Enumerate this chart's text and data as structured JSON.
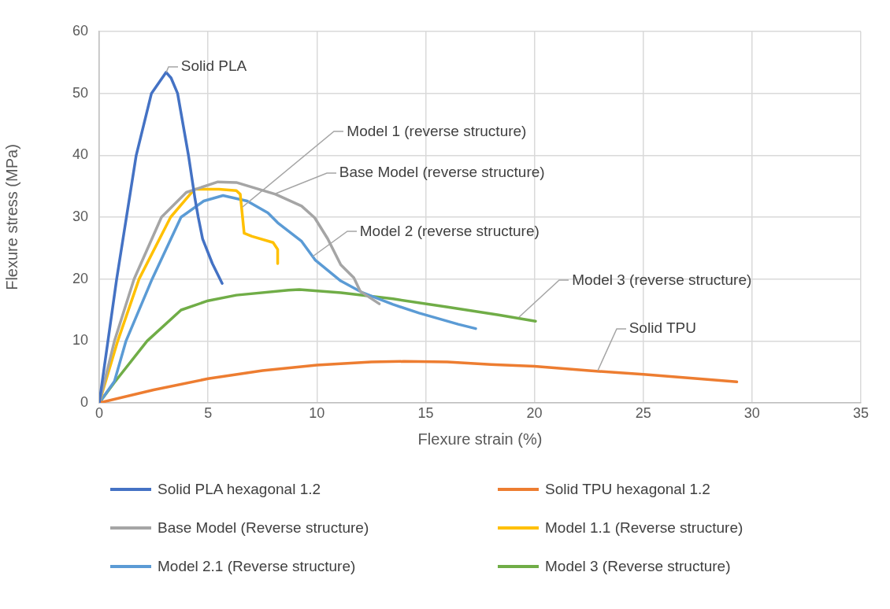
{
  "chart_data": {
    "type": "line",
    "xlabel": "Flexure strain (%)",
    "ylabel": "Flexure stress (MPa)",
    "xlim": [
      0,
      35
    ],
    "xticks": [
      0,
      5,
      10,
      15,
      20,
      25,
      30,
      35
    ],
    "ylim": [
      0,
      60
    ],
    "yticks": [
      0,
      10,
      20,
      30,
      40,
      50,
      60
    ],
    "grid": true,
    "legend": "bottom",
    "marker": "none",
    "line_style": "solid",
    "series": [
      {
        "name": "Solid PLA hexagonal 1.2",
        "color": "#4472c4",
        "x": [
          0,
          0.8,
          1.7,
          2.4,
          3.07,
          3.3,
          3.6,
          4.1,
          4.4,
          4.55,
          4.75,
          5.2,
          5.65
        ],
        "values": [
          0,
          20,
          40,
          50,
          53.4,
          52.5,
          50,
          40,
          33,
          30,
          26.5,
          22.5,
          19.3
        ]
      },
      {
        "name": "Solid TPU hexagonal 1.2",
        "color": "#ed7d31",
        "x": [
          0,
          2.5,
          5,
          7.5,
          10,
          12.5,
          14,
          16,
          18,
          20,
          22.5,
          25,
          27.5,
          29.3
        ],
        "values": [
          0,
          2.1,
          3.9,
          5.2,
          6.1,
          6.6,
          6.7,
          6.6,
          6.2,
          5.9,
          5.2,
          4.6,
          3.9,
          3.4
        ]
      },
      {
        "name": "Base Model (Reverse structure)",
        "color": "#a5a5a5",
        "x": [
          0,
          0.7,
          1.6,
          2.86,
          4,
          5.45,
          6.3,
          8.1,
          9.3,
          9.9,
          10.5,
          11.1,
          11.7,
          12,
          12.87
        ],
        "values": [
          0,
          10,
          20,
          30,
          34,
          35.7,
          35.6,
          33.7,
          31.8,
          29.9,
          26.5,
          22.3,
          20.2,
          18,
          16
        ]
      },
      {
        "name": "Model 1.1 (Reverse structure)",
        "color": "#ffc000",
        "x": [
          0,
          0.85,
          1.83,
          3.28,
          4.37,
          5.5,
          6.3,
          6.48,
          6.66,
          7.02,
          7.99,
          8.2,
          8.2
        ],
        "values": [
          0,
          10,
          20,
          30,
          34.5,
          34.5,
          34.3,
          33.7,
          27.4,
          26.9,
          25.9,
          24.8,
          22.5
        ]
      },
      {
        "name": "Model 2.1 (Reverse structure)",
        "color": "#5b9bd5",
        "x": [
          0,
          0.7,
          1.23,
          2.43,
          3.76,
          4.8,
          5.69,
          6.8,
          7.75,
          8.2,
          9.3,
          9.92,
          11.1,
          12.1,
          13.5,
          14.7,
          16.5,
          17.3
        ],
        "values": [
          0,
          3.5,
          10,
          20,
          30,
          32.6,
          33.5,
          32.6,
          30.7,
          29.1,
          26.1,
          23.1,
          19.7,
          17.8,
          15.9,
          14.5,
          12.7,
          12
        ]
      },
      {
        "name": "Model 3 (Reverse structure)",
        "color": "#70ad47",
        "x": [
          0,
          0.7,
          2.2,
          3.76,
          5,
          6.3,
          8.7,
          9.2,
          11.1,
          13.5,
          15.95,
          18.35,
          20.05
        ],
        "values": [
          0,
          3.3,
          10,
          15,
          16.5,
          17.4,
          18.2,
          18.3,
          17.8,
          16.8,
          15.5,
          14.2,
          13.2
        ]
      }
    ],
    "annotations": [
      {
        "text": "Solid PLA",
        "x": 3.07,
        "y": 53.4
      },
      {
        "text": "Model 1 (reverse structure)",
        "x": 6.6,
        "y": 31.6
      },
      {
        "text": "Base Model (reverse structure)",
        "x": 8.1,
        "y": 33.8
      },
      {
        "text": "Model 2 (reverse structure)",
        "x": 9.8,
        "y": 23.6
      },
      {
        "text": "Model 3 (reverse structure)",
        "x": 19.3,
        "y": 13.8
      },
      {
        "text": "Solid TPU",
        "x": 22.9,
        "y": 5.2
      }
    ]
  }
}
